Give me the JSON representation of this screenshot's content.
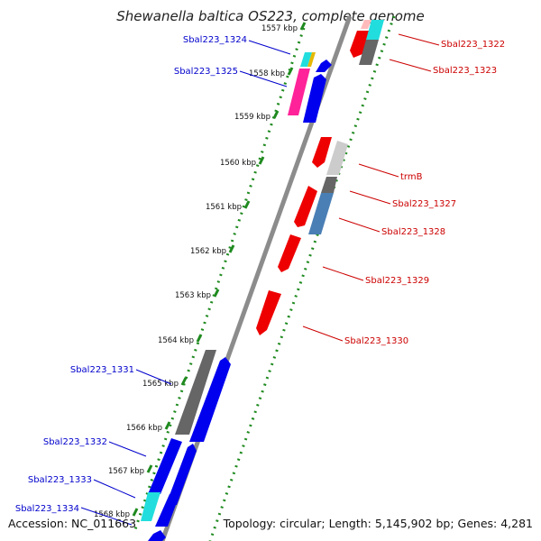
{
  "title": "Shewanella baltica OS223, complete genome",
  "footer": {
    "accession": "Accession: NC_011663",
    "topology": "Topology: circular; Length: 5,145,902 bp; Genes: 4,281"
  },
  "colors": {
    "backbone": "#8c8c8c",
    "ruler": "#1f8a1f",
    "label_left": "#0000cc",
    "label_right": "#cc0000"
  },
  "ticks": [
    {
      "label": "1557 kbp"
    },
    {
      "label": "1558 kbp"
    },
    {
      "label": "1559 kbp"
    },
    {
      "label": "1560 kbp"
    },
    {
      "label": "1561 kbp"
    },
    {
      "label": "1562 kbp"
    },
    {
      "label": "1563 kbp"
    },
    {
      "label": "1564 kbp"
    },
    {
      "label": "1565 kbp"
    },
    {
      "label": "1566 kbp"
    },
    {
      "label": "1567 kbp"
    },
    {
      "label": "1568 kbp"
    }
  ],
  "genes_left": [
    {
      "label": "Sbal223_1324"
    },
    {
      "label": "Sbal223_1325"
    },
    {
      "label": "Sbal223_1331"
    },
    {
      "label": "Sbal223_1332"
    },
    {
      "label": "Sbal223_1333"
    },
    {
      "label": "Sbal223_1334"
    }
  ],
  "genes_right": [
    {
      "label": "Sbal223_1322"
    },
    {
      "label": "Sbal223_1323"
    },
    {
      "label": "trmB"
    },
    {
      "label": "Sbal223_1327"
    },
    {
      "label": "Sbal223_1328"
    },
    {
      "label": "Sbal223_1329"
    },
    {
      "label": "Sbal223_1330"
    }
  ]
}
